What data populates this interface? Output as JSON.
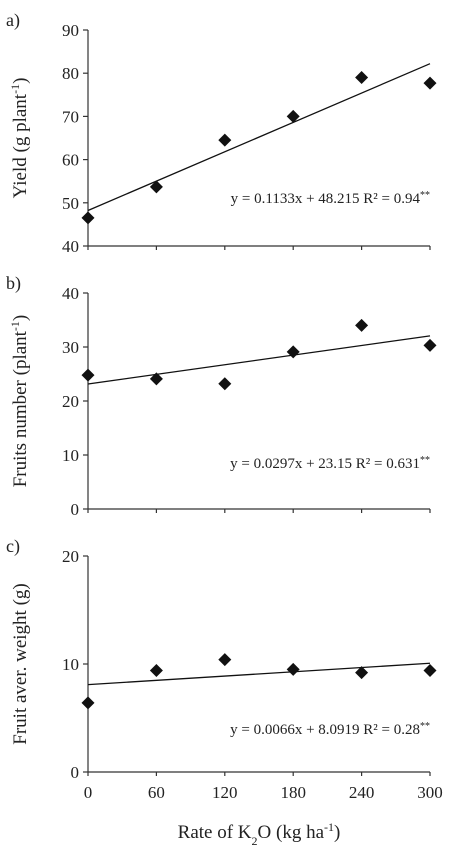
{
  "chart_data": [
    {
      "type": "scatter",
      "panel_label": "a)",
      "ylabel": "Yield (g plant",
      "ylabel_sup": "-1",
      "ylabel_end": ")",
      "x": [
        0,
        60,
        120,
        180,
        240,
        300
      ],
      "y": [
        46.5,
        53.7,
        64.5,
        70.0,
        79.0,
        77.7
      ],
      "yticks": [
        40,
        50,
        60,
        70,
        80,
        90
      ],
      "ylim": [
        40,
        90
      ],
      "trendline": {
        "slope": 0.1133,
        "intercept": 48.215
      },
      "equation": "y = 0.1133x + 48.215 R² = 0.94",
      "equation_sup": "**"
    },
    {
      "type": "scatter",
      "panel_label": "b)",
      "ylabel": "Fruits number (plant",
      "ylabel_sup": "-1",
      "ylabel_end": ")",
      "x": [
        0,
        60,
        120,
        180,
        240,
        300
      ],
      "y": [
        24.8,
        24.1,
        23.2,
        29.1,
        34.0,
        30.3
      ],
      "yticks": [
        0,
        10,
        20,
        30,
        40
      ],
      "ylim": [
        0,
        40
      ],
      "trendline": {
        "slope": 0.0297,
        "intercept": 23.15
      },
      "equation": "y = 0.0297x + 23.15 R² = 0.631",
      "equation_sup": "**"
    },
    {
      "type": "scatter",
      "panel_label": "c)",
      "ylabel": "Fruit aver. weight (g)",
      "ylabel_sup": "",
      "ylabel_end": "",
      "x": [
        0,
        60,
        120,
        180,
        240,
        300
      ],
      "y": [
        6.4,
        9.4,
        10.4,
        9.5,
        9.2,
        9.4
      ],
      "yticks": [
        0,
        10,
        20
      ],
      "ylim": [
        0,
        20
      ],
      "trendline": {
        "slope": 0.0066,
        "intercept": 8.0919
      },
      "equation": "y = 0.0066x + 8.0919 R² = 0.28",
      "equation_sup": "**"
    }
  ],
  "xaxis": {
    "ticks": [
      0,
      60,
      120,
      180,
      240,
      300
    ],
    "xlim": [
      0,
      300
    ],
    "label_pre": "Rate of K",
    "label_sub": "2",
    "label_mid": "O (kg ha",
    "label_sup": "-1",
    "label_end": ")"
  },
  "colors": {
    "marker": "#111111",
    "line": "#111111",
    "axis": "#333333"
  }
}
